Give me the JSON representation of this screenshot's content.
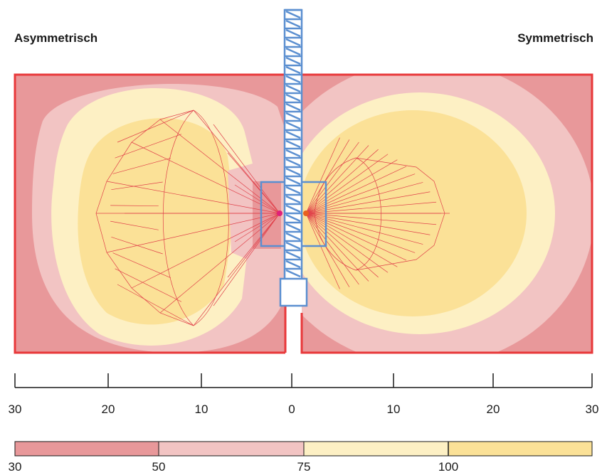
{
  "titles": {
    "left": "Asymmetrisch",
    "right": "Symmetrisch"
  },
  "scale": {
    "ticks": [
      "30",
      "20",
      "10",
      "0",
      "10",
      "20",
      "30"
    ]
  },
  "legend": {
    "labels": [
      "30",
      "50",
      "75",
      "100"
    ],
    "colors": [
      "#e8989a",
      "#f2c4c3",
      "#fdf0c4",
      "#fbe197"
    ]
  },
  "colors": {
    "frame": "#e8383a",
    "mast": "#5b8fd0",
    "beam": "#e0404a"
  }
}
